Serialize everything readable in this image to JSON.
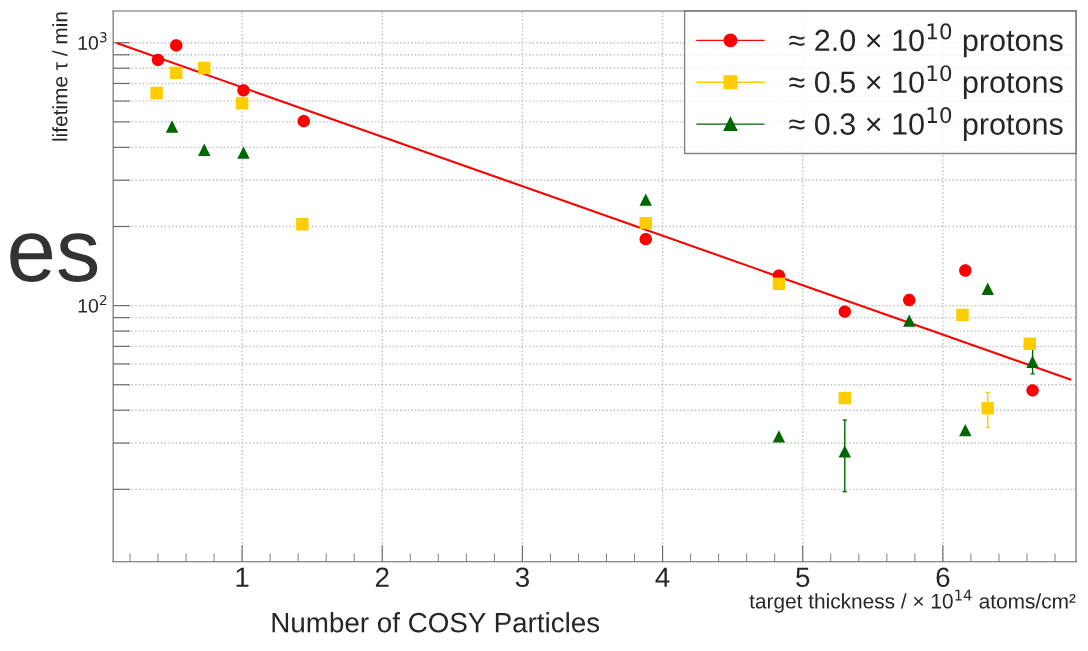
{
  "chart_data": {
    "type": "scatter",
    "xlabel": "target thickness / × 10$^{14}$ atoms/cm²",
    "ylabel": "lifetime τ / min",
    "annotations": [
      "Number of COSY Particles",
      "es"
    ],
    "log": "y",
    "grid": true,
    "legend": "top right",
    "xlim": [
      0.08,
      6.95
    ],
    "ylim": [
      10.6,
      1320
    ],
    "xticks": [
      {
        "value": 0.2,
        "label": null
      },
      {
        "value": 0.4,
        "label": null
      },
      {
        "value": 0.6,
        "label": null
      },
      {
        "value": 0.8,
        "label": null
      },
      1,
      {
        "value": 1.2,
        "label": null
      },
      {
        "value": 1.4,
        "label": null
      },
      {
        "value": 1.6,
        "label": null
      },
      {
        "value": 1.8,
        "label": null
      },
      2,
      {
        "value": 2.2,
        "label": null
      },
      {
        "value": 2.4,
        "label": null
      },
      {
        "value": 2.6,
        "label": null
      },
      {
        "value": 2.8,
        "label": null
      },
      3,
      {
        "value": 3.2,
        "label": null
      },
      {
        "value": 3.4,
        "label": null
      },
      {
        "value": 3.6,
        "label": null
      },
      {
        "value": 3.8,
        "label": null
      },
      4,
      {
        "value": 4.2,
        "label": null
      },
      {
        "value": 4.4,
        "label": null
      },
      {
        "value": 4.6,
        "label": null
      },
      {
        "value": 4.8,
        "label": null
      },
      5,
      {
        "value": 5.2,
        "label": null
      },
      {
        "value": 5.4,
        "label": null
      },
      {
        "value": 5.6,
        "label": null
      },
      {
        "value": 5.8,
        "label": null
      },
      6,
      {
        "value": 6.2,
        "label": null
      },
      {
        "value": 6.4,
        "label": null
      },
      {
        "value": 6.6,
        "label": null
      },
      {
        "value": 6.8,
        "label": null
      }
    ],
    "yticks": [
      {
        "value": 20,
        "label": null
      },
      {
        "value": 30,
        "label": null
      },
      {
        "value": 40,
        "label": null
      },
      {
        "value": 50,
        "label": null
      },
      {
        "value": 60,
        "label": null
      },
      {
        "value": 70,
        "label": null
      },
      {
        "value": 80,
        "label": null
      },
      {
        "value": 90,
        "label": null
      },
      {
        "value": 100,
        "label": "10$^{2}$"
      },
      {
        "value": 200,
        "label": null
      },
      {
        "value": 300,
        "label": null
      },
      {
        "value": 400,
        "label": null
      },
      {
        "value": 500,
        "label": null
      },
      {
        "value": 600,
        "label": null
      },
      {
        "value": 700,
        "label": null
      },
      {
        "value": 800,
        "label": null
      },
      {
        "value": 900,
        "label": null
      },
      {
        "value": 1000,
        "label": "10$^{3}$"
      }
    ],
    "series": [
      {
        "name": "≈ 2.0 × 10$^{10}$ protons",
        "color": "#ff0000",
        "marker": "circle",
        "x": [
          0.4,
          0.53,
          1.01,
          1.44,
          3.88,
          4.83,
          5.3,
          5.76,
          6.16,
          6.64
        ],
        "values": [
          861,
          977,
          659,
          503,
          179,
          130,
          94.9,
          105,
          136,
          47.6
        ]
      },
      {
        "name": "≈ 0.5 × 10$^{10}$ protons",
        "color": "#ffcc00",
        "marker": "square",
        "x": [
          0.39,
          0.53,
          0.73,
          1.0,
          1.43,
          3.88,
          4.83,
          6.14,
          5.3,
          6.32,
          6.62
        ],
        "values": [
          644,
          768,
          802,
          588,
          204,
          206,
          121,
          92.1,
          44.5,
          40.7,
          71.6
        ],
        "errors": [
          null,
          null,
          null,
          null,
          null,
          null,
          null,
          null,
          null,
          [
            34.4,
            46.7
          ],
          null
        ]
      },
      {
        "name": "≈ 0.3 × 10$^{10}$ protons",
        "color": "#006600",
        "marker": "triangle",
        "x": [
          0.5,
          0.73,
          1.01,
          3.88,
          6.32,
          5.76,
          4.83,
          5.3,
          6.16,
          6.64
        ],
        "values": [
          480,
          392,
          382,
          253,
          116,
          87.7,
          31.8,
          27.9,
          33.6,
          61.2
        ],
        "errors": [
          null,
          null,
          null,
          null,
          null,
          null,
          null,
          [
            19.6,
            36.7
          ],
          null,
          [
            55,
            68.7
          ]
        ]
      },
      {
        "type": "line",
        "color": "#ff0000",
        "x": [
          0.11,
          6.91
        ],
        "values": [
          995,
          52.3
        ]
      }
    ]
  }
}
